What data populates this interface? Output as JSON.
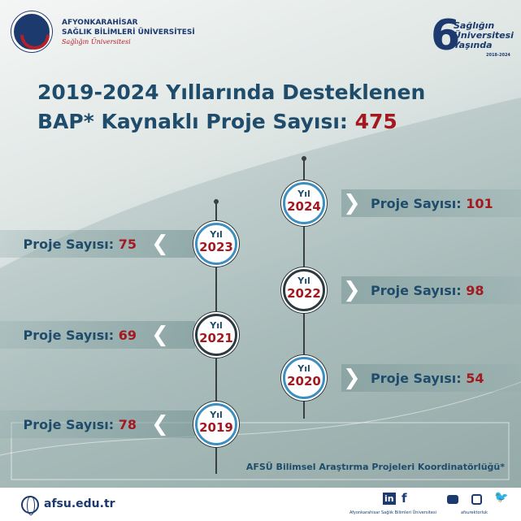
{
  "header": {
    "university_line1": "AFYONKARAHİSAR",
    "university_line2": "SAĞLIK BİLİMLERİ ÜNİVERSİTESİ",
    "slogan": "Sağlığın Üniversitesi",
    "anniversary_number": "6",
    "anniversary_text1": "Sağlığın",
    "anniversary_text2": "Üniversitesi",
    "anniversary_text3": "Yaşında",
    "anniversary_years": "2018-2024"
  },
  "title": {
    "line1": "2019-2024 Yıllarında Desteklenen",
    "line2_prefix": "BAP* Kaynaklı Proje Sayısı:",
    "total": "475"
  },
  "timeline": {
    "year_label": "Yıl",
    "count_label": "Proje Sayısı:",
    "right": [
      {
        "year": "2024",
        "count": "101"
      },
      {
        "year": "2022",
        "count": "98"
      },
      {
        "year": "2020",
        "count": "54"
      }
    ],
    "left": [
      {
        "year": "2023",
        "count": "75"
      },
      {
        "year": "2021",
        "count": "69"
      },
      {
        "year": "2019",
        "count": "78"
      }
    ]
  },
  "credit": "AFSÜ Bilimsel Araştırma Projeleri Koordinatörlüğü*",
  "footer": {
    "website": "afsu.edu.tr",
    "linkedin_facebook_name": "Afyonkarahisar Sağlık Bilimleri Üniversitesi",
    "other_handle": "afsurektorluk",
    "icons": [
      "globe-icon",
      "linkedin-icon",
      "facebook-icon",
      "youtube-icon",
      "instagram-icon",
      "twitter-icon"
    ]
  },
  "colors": {
    "title": "#1f4c6b",
    "accent_red": "#a3191f",
    "circle_blue": "#3d8fc0"
  }
}
